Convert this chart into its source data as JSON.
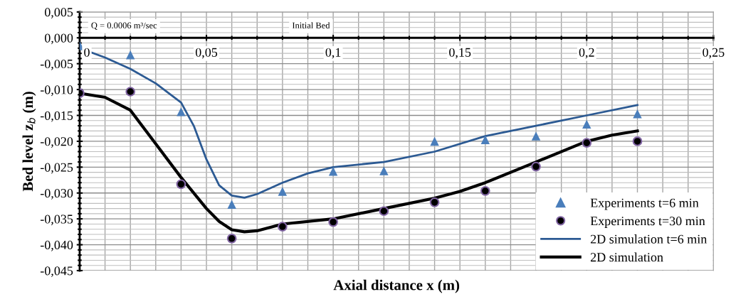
{
  "chart_data": {
    "type": "line",
    "xlabel": "Axial distance x (m)",
    "ylabel": "Bed level z$_{b}$ (m)",
    "annotations": [
      "Q = 0.0006 m³/sec",
      "Initial Bed"
    ],
    "xlim": [
      0,
      0.25
    ],
    "ylim": [
      -0.045,
      0.005
    ],
    "xticks": [
      {
        "value": 0,
        "label": "0"
      },
      {
        "value": 0.05,
        "label": "0,05"
      },
      {
        "value": 0.1,
        "label": "0,1"
      },
      {
        "value": 0.15,
        "label": "0,15"
      },
      {
        "value": 0.2,
        "label": "0,2"
      },
      {
        "value": 0.25,
        "label": "0,25"
      }
    ],
    "yticks": [
      {
        "value": 0.005,
        "label": "0,005"
      },
      {
        "value": 0,
        "label": "0,000"
      },
      {
        "value": -0.005,
        "label": "-0,005"
      },
      {
        "value": -0.01,
        "label": "-0,010"
      },
      {
        "value": -0.015,
        "label": "-0,015"
      },
      {
        "value": -0.02,
        "label": "-0,020"
      },
      {
        "value": -0.025,
        "label": "-0,025"
      },
      {
        "value": -0.03,
        "label": "-0,030"
      },
      {
        "value": -0.035,
        "label": "-0,035"
      },
      {
        "value": -0.04,
        "label": "-0,040"
      },
      {
        "value": -0.045,
        "label": "-0,045"
      }
    ],
    "grid": true,
    "legend": "bottom right",
    "series": [
      {
        "name": "Experiments t=6 min",
        "type": "scatter",
        "marker": "triangle",
        "color": "#4a7ebb",
        "x": [
          0,
          0.02,
          0.04,
          0.06,
          0.08,
          0.1,
          0.12,
          0.14,
          0.16,
          0.18,
          0.2,
          0.22
        ],
        "values": [
          -0.0015,
          -0.0033,
          -0.0143,
          -0.0322,
          -0.0297,
          -0.0258,
          -0.0257,
          -0.02,
          -0.0197,
          -0.019,
          -0.0167,
          -0.0147
        ]
      },
      {
        "name": "Experiments t=30 min",
        "type": "scatter",
        "marker": "circle",
        "color": "#000000",
        "x": [
          0,
          0.02,
          0.04,
          0.06,
          0.08,
          0.1,
          0.12,
          0.14,
          0.16,
          0.18,
          0.2,
          0.22
        ],
        "values": [
          -0.0107,
          -0.0104,
          -0.0283,
          -0.0388,
          -0.0365,
          -0.0356,
          -0.0335,
          -0.0318,
          -0.0296,
          -0.0249,
          -0.0203,
          -0.02
        ]
      },
      {
        "name": "2D simulation t=6 min",
        "color": "#2c5a93",
        "x": [
          0,
          0.01,
          0.02,
          0.03,
          0.04,
          0.045,
          0.05,
          0.055,
          0.06,
          0.065,
          0.07,
          0.08,
          0.09,
          0.1,
          0.12,
          0.14,
          0.16,
          0.18,
          0.2,
          0.22
        ],
        "values": [
          -0.002,
          -0.0038,
          -0.006,
          -0.0088,
          -0.0125,
          -0.017,
          -0.0235,
          -0.0285,
          -0.0305,
          -0.0309,
          -0.0302,
          -0.028,
          -0.0262,
          -0.025,
          -0.024,
          -0.022,
          -0.019,
          -0.017,
          -0.015,
          -0.013
        ]
      },
      {
        "name": "2D simulation",
        "color": "#000000",
        "x": [
          0,
          0.01,
          0.02,
          0.03,
          0.04,
          0.05,
          0.055,
          0.06,
          0.065,
          0.07,
          0.08,
          0.1,
          0.12,
          0.14,
          0.15,
          0.16,
          0.18,
          0.2,
          0.21,
          0.22
        ],
        "values": [
          -0.0107,
          -0.0115,
          -0.014,
          -0.0205,
          -0.027,
          -0.033,
          -0.0355,
          -0.0371,
          -0.0375,
          -0.0373,
          -0.036,
          -0.035,
          -0.033,
          -0.031,
          -0.0297,
          -0.028,
          -0.024,
          -0.02,
          -0.0188,
          -0.018
        ]
      }
    ]
  }
}
